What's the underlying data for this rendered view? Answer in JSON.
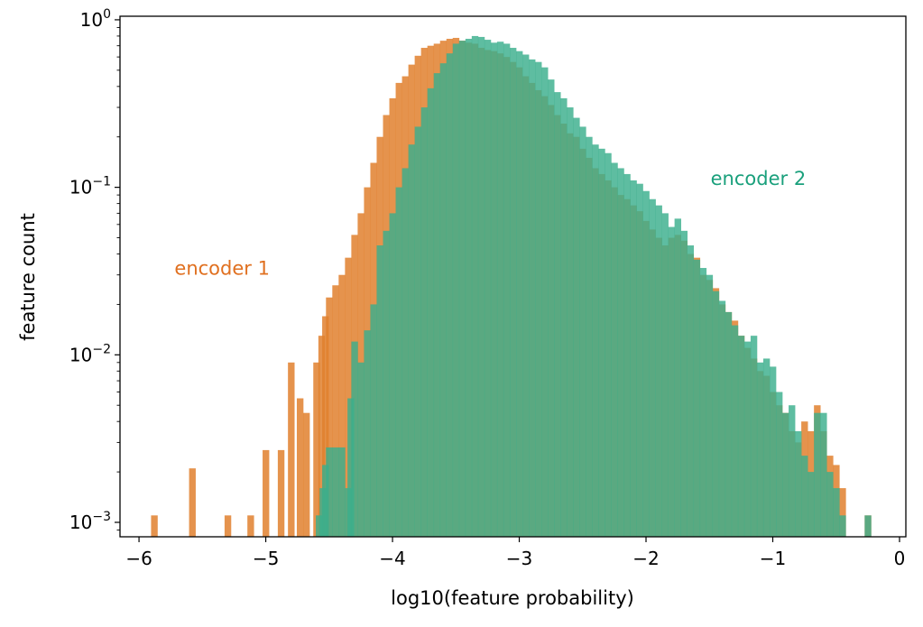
{
  "chart_data": {
    "type": "bar",
    "title": "",
    "xlabel": "log10(feature probability)",
    "ylabel": "feature count",
    "xlim": [
      -6.15,
      0.05
    ],
    "ylim": [
      0.00082,
      1.05
    ],
    "yscale": "log",
    "grid": false,
    "legend": "none",
    "bin_width": 0.05,
    "x_ticks": [
      {
        "value": -6,
        "label": "−6"
      },
      {
        "value": -5,
        "label": "−5"
      },
      {
        "value": -4,
        "label": "−4"
      },
      {
        "value": -3,
        "label": "−3"
      },
      {
        "value": -2,
        "label": "−2"
      },
      {
        "value": -1,
        "label": "−1"
      },
      {
        "value": 0,
        "label": "0"
      }
    ],
    "y_ticks": [
      {
        "value": 1,
        "base": "10",
        "exp": "0"
      },
      {
        "value": 0.1,
        "base": "10",
        "exp": "−1"
      },
      {
        "value": 0.01,
        "base": "10",
        "exp": "−2"
      },
      {
        "value": 0.001,
        "base": "10",
        "exp": "−3"
      }
    ],
    "annotations": [
      {
        "text": "encoder 1",
        "x": -5.72,
        "y": 0.03,
        "color": "#e07020"
      },
      {
        "text": "encoder 2",
        "x": -1.49,
        "y": 0.103,
        "color": "#1aa07c"
      }
    ],
    "series": [
      {
        "color": "#e0802e",
        "opacity": 0.85,
        "points": [
          [
            -5.88,
            0.0011
          ],
          [
            -5.58,
            0.0021
          ],
          [
            -5.3,
            0.0011
          ],
          [
            -5.12,
            0.0011
          ],
          [
            -5.0,
            0.0027
          ],
          [
            -4.88,
            0.0027
          ],
          [
            -4.8,
            0.009
          ],
          [
            -4.73,
            0.0055
          ],
          [
            -4.68,
            0.0045
          ],
          [
            -4.6,
            0.009
          ],
          [
            -4.56,
            0.013
          ],
          [
            -4.53,
            0.017
          ],
          [
            -4.5,
            0.022
          ],
          [
            -4.45,
            0.026
          ],
          [
            -4.4,
            0.03
          ],
          [
            -4.35,
            0.038
          ],
          [
            -4.3,
            0.052
          ],
          [
            -4.25,
            0.07
          ],
          [
            -4.2,
            0.1
          ],
          [
            -4.15,
            0.14
          ],
          [
            -4.1,
            0.2
          ],
          [
            -4.05,
            0.27
          ],
          [
            -4.0,
            0.34
          ],
          [
            -3.95,
            0.42
          ],
          [
            -3.9,
            0.46
          ],
          [
            -3.85,
            0.54
          ],
          [
            -3.8,
            0.61
          ],
          [
            -3.75,
            0.68
          ],
          [
            -3.7,
            0.7
          ],
          [
            -3.65,
            0.72
          ],
          [
            -3.6,
            0.75
          ],
          [
            -3.55,
            0.77
          ],
          [
            -3.5,
            0.78
          ],
          [
            -3.45,
            0.75
          ],
          [
            -3.4,
            0.73
          ],
          [
            -3.35,
            0.72
          ],
          [
            -3.3,
            0.68
          ],
          [
            -3.25,
            0.66
          ],
          [
            -3.2,
            0.65
          ],
          [
            -3.15,
            0.63
          ],
          [
            -3.1,
            0.6
          ],
          [
            -3.05,
            0.56
          ],
          [
            -3.0,
            0.52
          ],
          [
            -2.95,
            0.46
          ],
          [
            -2.9,
            0.42
          ],
          [
            -2.85,
            0.38
          ],
          [
            -2.8,
            0.35
          ],
          [
            -2.75,
            0.31
          ],
          [
            -2.7,
            0.27
          ],
          [
            -2.65,
            0.24
          ],
          [
            -2.6,
            0.21
          ],
          [
            -2.55,
            0.2
          ],
          [
            -2.5,
            0.17
          ],
          [
            -2.45,
            0.15
          ],
          [
            -2.4,
            0.13
          ],
          [
            -2.35,
            0.12
          ],
          [
            -2.3,
            0.11
          ],
          [
            -2.25,
            0.1
          ],
          [
            -2.2,
            0.09
          ],
          [
            -2.15,
            0.085
          ],
          [
            -2.1,
            0.078
          ],
          [
            -2.05,
            0.072
          ],
          [
            -2.0,
            0.063
          ],
          [
            -1.95,
            0.056
          ],
          [
            -1.9,
            0.05
          ],
          [
            -1.85,
            0.045
          ],
          [
            -1.8,
            0.05
          ],
          [
            -1.75,
            0.052
          ],
          [
            -1.7,
            0.048
          ],
          [
            -1.65,
            0.04
          ],
          [
            -1.6,
            0.038
          ],
          [
            -1.55,
            0.03
          ],
          [
            -1.5,
            0.028
          ],
          [
            -1.45,
            0.025
          ],
          [
            -1.4,
            0.02
          ],
          [
            -1.35,
            0.018
          ],
          [
            -1.3,
            0.016
          ],
          [
            -1.25,
            0.013
          ],
          [
            -1.2,
            0.011
          ],
          [
            -1.15,
            0.0095
          ],
          [
            -1.1,
            0.008
          ],
          [
            -1.05,
            0.0075
          ],
          [
            -1.0,
            0.006
          ],
          [
            -0.95,
            0.005
          ],
          [
            -0.9,
            0.0045
          ],
          [
            -0.85,
            0.0035
          ],
          [
            -0.8,
            0.003
          ],
          [
            -0.75,
            0.004
          ],
          [
            -0.7,
            0.0035
          ],
          [
            -0.65,
            0.005
          ],
          [
            -0.6,
            0.0035
          ],
          [
            -0.55,
            0.0025
          ],
          [
            -0.5,
            0.0022
          ],
          [
            -0.45,
            0.0016
          ],
          [
            -0.25,
            0.0011
          ]
        ]
      },
      {
        "color": "#3aae8c",
        "opacity": 0.82,
        "points": [
          [
            -4.58,
            0.0011
          ],
          [
            -4.55,
            0.0016
          ],
          [
            -4.53,
            0.0022
          ],
          [
            -4.5,
            0.0028
          ],
          [
            -4.45,
            0.0028
          ],
          [
            -4.4,
            0.0028
          ],
          [
            -4.35,
            0.0016
          ],
          [
            -4.33,
            0.0055
          ],
          [
            -4.3,
            0.012
          ],
          [
            -4.25,
            0.009
          ],
          [
            -4.2,
            0.014
          ],
          [
            -4.15,
            0.02
          ],
          [
            -4.1,
            0.045
          ],
          [
            -4.05,
            0.055
          ],
          [
            -4.0,
            0.07
          ],
          [
            -3.95,
            0.1
          ],
          [
            -3.9,
            0.13
          ],
          [
            -3.85,
            0.18
          ],
          [
            -3.8,
            0.23
          ],
          [
            -3.75,
            0.3
          ],
          [
            -3.7,
            0.39
          ],
          [
            -3.65,
            0.48
          ],
          [
            -3.6,
            0.55
          ],
          [
            -3.55,
            0.63
          ],
          [
            -3.5,
            0.72
          ],
          [
            -3.45,
            0.75
          ],
          [
            -3.4,
            0.77
          ],
          [
            -3.35,
            0.8
          ],
          [
            -3.3,
            0.79
          ],
          [
            -3.25,
            0.76
          ],
          [
            -3.2,
            0.73
          ],
          [
            -3.15,
            0.74
          ],
          [
            -3.1,
            0.72
          ],
          [
            -3.05,
            0.68
          ],
          [
            -3.0,
            0.65
          ],
          [
            -2.95,
            0.62
          ],
          [
            -2.9,
            0.58
          ],
          [
            -2.85,
            0.56
          ],
          [
            -2.8,
            0.52
          ],
          [
            -2.75,
            0.44
          ],
          [
            -2.7,
            0.37
          ],
          [
            -2.65,
            0.34
          ],
          [
            -2.6,
            0.3
          ],
          [
            -2.55,
            0.26
          ],
          [
            -2.5,
            0.23
          ],
          [
            -2.45,
            0.2
          ],
          [
            -2.4,
            0.18
          ],
          [
            -2.35,
            0.17
          ],
          [
            -2.3,
            0.16
          ],
          [
            -2.25,
            0.14
          ],
          [
            -2.2,
            0.13
          ],
          [
            -2.15,
            0.12
          ],
          [
            -2.1,
            0.11
          ],
          [
            -2.05,
            0.105
          ],
          [
            -2.0,
            0.095
          ],
          [
            -1.95,
            0.085
          ],
          [
            -1.9,
            0.078
          ],
          [
            -1.85,
            0.07
          ],
          [
            -1.8,
            0.058
          ],
          [
            -1.75,
            0.065
          ],
          [
            -1.7,
            0.055
          ],
          [
            -1.65,
            0.045
          ],
          [
            -1.6,
            0.037
          ],
          [
            -1.55,
            0.033
          ],
          [
            -1.5,
            0.03
          ],
          [
            -1.45,
            0.024
          ],
          [
            -1.4,
            0.021
          ],
          [
            -1.35,
            0.018
          ],
          [
            -1.3,
            0.015
          ],
          [
            -1.25,
            0.013
          ],
          [
            -1.2,
            0.012
          ],
          [
            -1.15,
            0.013
          ],
          [
            -1.1,
            0.009
          ],
          [
            -1.05,
            0.0095
          ],
          [
            -1.0,
            0.0085
          ],
          [
            -0.95,
            0.006
          ],
          [
            -0.9,
            0.0045
          ],
          [
            -0.85,
            0.005
          ],
          [
            -0.8,
            0.0035
          ],
          [
            -0.75,
            0.0025
          ],
          [
            -0.7,
            0.002
          ],
          [
            -0.65,
            0.0045
          ],
          [
            -0.6,
            0.0045
          ],
          [
            -0.55,
            0.002
          ],
          [
            -0.5,
            0.0016
          ],
          [
            -0.45,
            0.0011
          ],
          [
            -0.4,
            0.0008
          ],
          [
            -0.35,
            0.0008
          ],
          [
            -0.3,
            0.0008
          ],
          [
            -0.25,
            0.0011
          ]
        ]
      }
    ]
  }
}
